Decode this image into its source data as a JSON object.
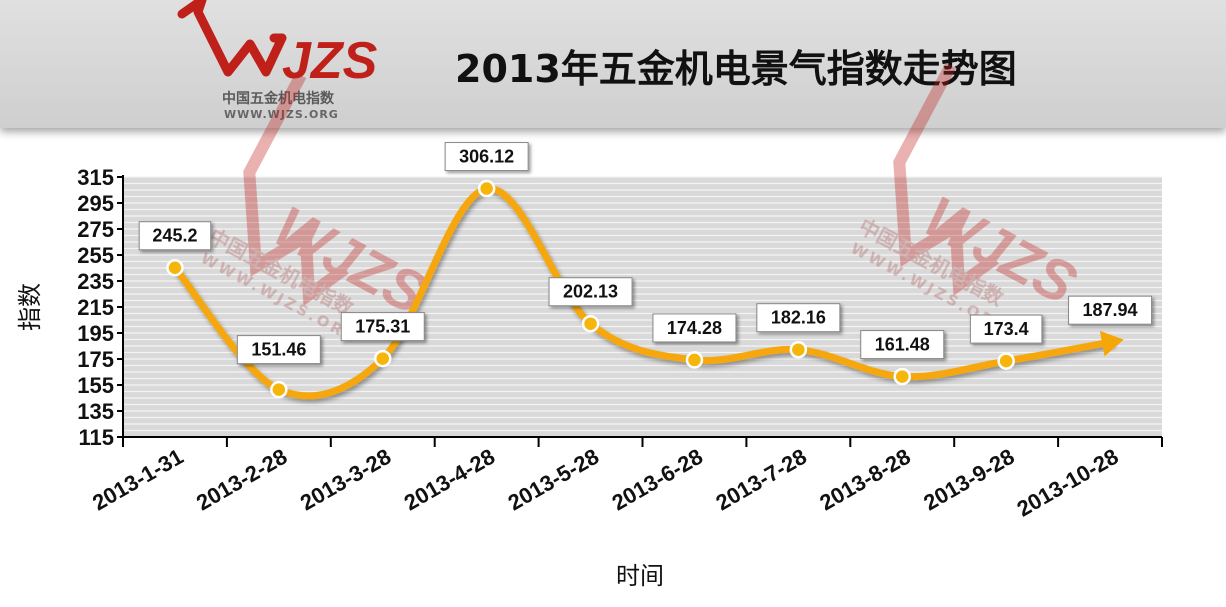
{
  "title": "2013年五金机电景气指数走势图",
  "logo": {
    "mark": "WJZS",
    "name": "中国五金机电指数",
    "url": "WWW.WJZS.ORG"
  },
  "colors": {
    "line": "#f5a70a",
    "marker_fill": "#f5b50a",
    "plot_bg": "#d9d9d9",
    "grid": "#f4f4f4",
    "logo_red": "#c0201a",
    "watermark": "#e8b0b0"
  },
  "chart_data": {
    "type": "line",
    "title": "2013年五金机电景气指数走势图",
    "xlabel": "时间",
    "ylabel": "指数",
    "categories": [
      "2013-1-31",
      "2013-2-28",
      "2013-3-28",
      "2013-4-28",
      "2013-5-28",
      "2013-6-28",
      "2013-7-28",
      "2013-8-28",
      "2013-9-28",
      "2013-10-28"
    ],
    "series": [
      {
        "values": [
          245.2,
          151.46,
          175.31,
          306.12,
          202.13,
          174.28,
          182.16,
          161.48,
          173.4,
          187.94
        ],
        "labels": [
          "245.2",
          "151.46",
          "175.31",
          "306.12",
          "202.13",
          "174.28",
          "182.16",
          "161.48",
          "173.4",
          "187.94"
        ]
      }
    ],
    "yticks": [
      115,
      135,
      155,
      175,
      195,
      215,
      235,
      255,
      275,
      295,
      315
    ],
    "ylim": [
      115,
      315
    ],
    "grid": true,
    "legend": "none",
    "last_point_marker": "arrow"
  }
}
